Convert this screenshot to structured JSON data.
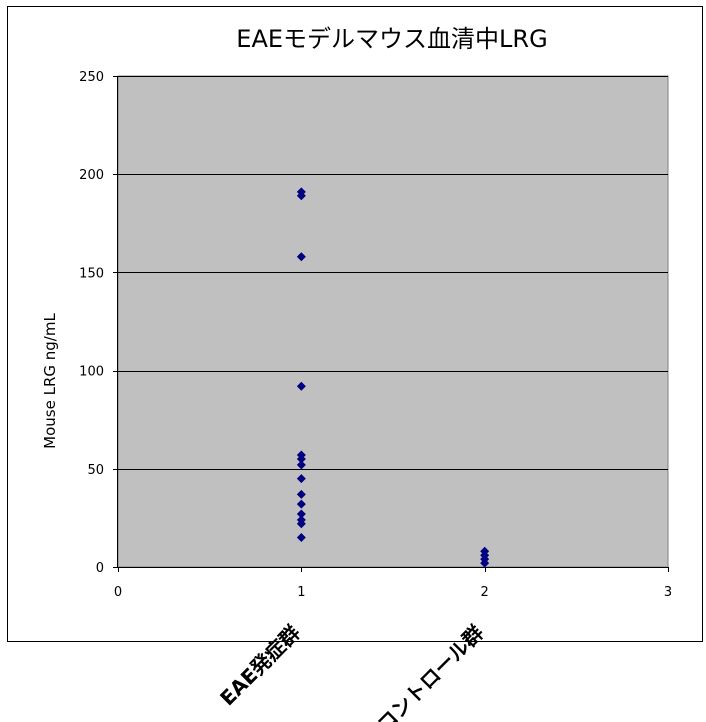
{
  "chart_data": {
    "type": "scatter",
    "title": "EAEモデルマウス血清中LRG",
    "ylabel": "Mouse LRG ng/mL",
    "xlabel": "",
    "xlim": [
      0,
      3
    ],
    "ylim": [
      0,
      250
    ],
    "x_ticks": [
      0,
      1,
      2,
      3
    ],
    "y_ticks": [
      0,
      50,
      100,
      150,
      200,
      250
    ],
    "grid": true,
    "legend": "none",
    "group_labels": [
      {
        "x": 1,
        "text": "EAE発症群"
      },
      {
        "x": 2,
        "text": "コントロール群"
      }
    ],
    "series": [
      {
        "points": [
          {
            "x": 1,
            "y": 191
          },
          {
            "x": 1,
            "y": 189
          },
          {
            "x": 1,
            "y": 158
          },
          {
            "x": 1,
            "y": 92
          },
          {
            "x": 1,
            "y": 57
          },
          {
            "x": 1,
            "y": 55
          },
          {
            "x": 1,
            "y": 52
          },
          {
            "x": 1,
            "y": 45
          },
          {
            "x": 1,
            "y": 37
          },
          {
            "x": 1,
            "y": 32
          },
          {
            "x": 1,
            "y": 27
          },
          {
            "x": 1,
            "y": 24
          },
          {
            "x": 1,
            "y": 22
          },
          {
            "x": 1,
            "y": 15
          },
          {
            "x": 2,
            "y": 8
          },
          {
            "x": 2,
            "y": 6
          },
          {
            "x": 2,
            "y": 4
          },
          {
            "x": 2,
            "y": 2
          }
        ]
      }
    ]
  },
  "colors": {
    "plot_background": "#c0c0c0",
    "marker": "#000080",
    "gridline": "#000000",
    "chart_background": "#ffffff"
  },
  "icons": {
    "marker_shape": "diamond"
  }
}
